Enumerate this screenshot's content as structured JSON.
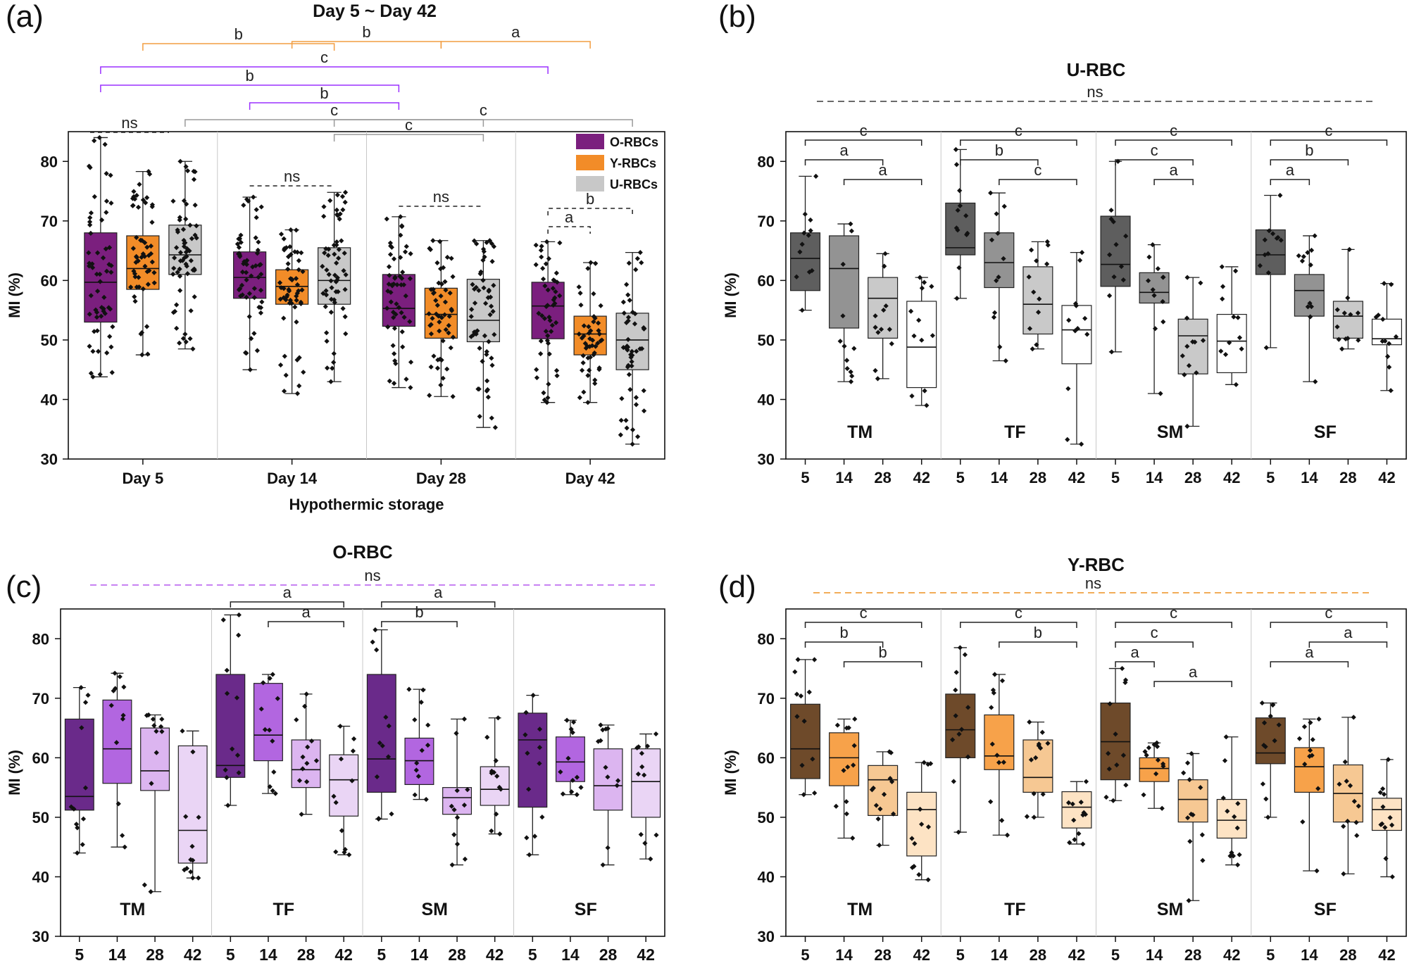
{
  "figure": {
    "colors": {
      "O": "#7b1f7e",
      "Y": "#f28c28",
      "U": "#c8c8c8",
      "o_bracket": "#9b30ff",
      "y_bracket": "#f29d40",
      "grid": "#c8c8c8"
    }
  },
  "chart_data": [
    {
      "id": "a",
      "panel_label": "(a)",
      "type": "box",
      "title": "Day 5 ~ Day 42",
      "xlabel": "Hypothermic storage",
      "ylabel": "MI (%)",
      "ylim": [
        30,
        85
      ],
      "yticks": [
        30,
        40,
        50,
        60,
        70,
        80
      ],
      "categories": [
        "Day 5",
        "Day 14",
        "Day 28",
        "Day 42"
      ],
      "legend": [
        {
          "label": "O-RBCs",
          "color": "#7b1f7e"
        },
        {
          "label": "Y-RBCs",
          "color": "#f28c28"
        },
        {
          "label": "U-RBCs",
          "color": "#c8c8c8"
        }
      ],
      "series": [
        {
          "name": "O-RBCs",
          "boxes": [
            {
              "whislo": 43.8,
              "q1": 53.0,
              "med": 59.7,
              "q3": 68.0,
              "whishi": 84.0
            },
            {
              "whislo": 45.0,
              "q1": 57.0,
              "med": 60.5,
              "q3": 64.8,
              "whishi": 74.0
            },
            {
              "whislo": 42.0,
              "q1": 52.3,
              "med": 55.3,
              "q3": 61.0,
              "whishi": 70.7
            },
            {
              "whislo": 39.5,
              "q1": 50.2,
              "med": 55.7,
              "q3": 59.7,
              "whishi": 66.5
            }
          ]
        },
        {
          "name": "Y-RBCs",
          "boxes": [
            {
              "whislo": 47.5,
              "q1": 58.5,
              "med": 62.0,
              "q3": 67.5,
              "whishi": 78.3
            },
            {
              "whislo": 41.0,
              "q1": 56.0,
              "med": 59.0,
              "q3": 61.8,
              "whishi": 68.5
            },
            {
              "whislo": 40.5,
              "q1": 50.3,
              "med": 54.3,
              "q3": 58.7,
              "whishi": 66.7
            },
            {
              "whislo": 39.5,
              "q1": 47.5,
              "med": 51.0,
              "q3": 54.0,
              "whishi": 63.0
            }
          ]
        },
        {
          "name": "U-RBCs",
          "boxes": [
            {
              "whislo": 48.5,
              "q1": 61.0,
              "med": 64.3,
              "q3": 69.3,
              "whishi": 80.0
            },
            {
              "whislo": 43.0,
              "q1": 56.0,
              "med": 60.0,
              "q3": 65.5,
              "whishi": 74.8
            },
            {
              "whislo": 35.3,
              "q1": 49.7,
              "med": 53.3,
              "q3": 60.2,
              "whishi": 66.7
            },
            {
              "whislo": 32.5,
              "q1": 45.0,
              "med": 50.0,
              "q3": 54.5,
              "whishi": 64.7
            }
          ]
        }
      ],
      "annotations": [
        {
          "label": "b",
          "color": "orange",
          "from": [
            "Day 5",
            "Y-RBCs"
          ],
          "to": [
            "Day 14",
            "U-RBCs"
          ]
        },
        {
          "label": "b",
          "color": "orange",
          "from": [
            "Day 14",
            "Y-RBCs"
          ],
          "to": [
            "Day 28",
            "Y-RBCs"
          ]
        },
        {
          "label": "a",
          "color": "orange",
          "from": [
            "Day 28",
            "Y-RBCs"
          ],
          "to": [
            "Day 42",
            "Y-RBCs"
          ]
        },
        {
          "label": "c",
          "color": "purple",
          "from": [
            "Day 5",
            "O-RBCs"
          ],
          "to": [
            "Day 42",
            "O-RBCs"
          ]
        },
        {
          "label": "b",
          "color": "purple",
          "from": [
            "Day 5",
            "O-RBCs"
          ],
          "to": [
            "Day 28",
            "O-RBCs"
          ]
        },
        {
          "label": "b",
          "color": "purple",
          "from": [
            "Day 14",
            "O-RBCs"
          ],
          "to": [
            "Day 28",
            "O-RBCs"
          ]
        },
        {
          "label": "c",
          "color": "gray",
          "from": [
            "Day 5",
            "U-RBCs"
          ],
          "to": [
            "Day 28",
            "U-RBCs"
          ]
        },
        {
          "label": "c",
          "color": "gray",
          "from": [
            "Day 14",
            "U-RBCs"
          ],
          "to": [
            "Day 42",
            "U-RBCs"
          ]
        },
        {
          "label": "c",
          "color": "gray",
          "from": [
            "Day 14",
            "U-RBCs"
          ],
          "to": [
            "Day 28",
            "U-RBCs"
          ]
        },
        {
          "label": "ns",
          "color": "black-dashed",
          "group": "Day 5"
        },
        {
          "label": "ns",
          "color": "black-dashed",
          "group": "Day 14"
        },
        {
          "label": "ns",
          "color": "black-dashed",
          "group": "Day 28"
        },
        {
          "label": "a",
          "color": "black-dashed",
          "from": [
            "Day 42",
            "O-RBCs"
          ],
          "to": [
            "Day 42",
            "Y-RBCs"
          ]
        },
        {
          "label": "b",
          "color": "black-dashed",
          "from": [
            "Day 42",
            "O-RBCs"
          ],
          "to": [
            "Day 42",
            "U-RBCs"
          ]
        }
      ]
    },
    {
      "id": "b",
      "panel_label": "(b)",
      "type": "box",
      "title": "U-RBC",
      "overall_label": "ns",
      "ylabel": "MI (%)",
      "ylim": [
        30,
        85
      ],
      "yticks": [
        30,
        40,
        50,
        60,
        70,
        80
      ],
      "groups": [
        "TM",
        "TF",
        "SM",
        "SF"
      ],
      "days": [
        "5",
        "14",
        "28",
        "42"
      ],
      "series_colors": [
        "#5e5e5e",
        "#939393",
        "#c9c9c9",
        "#ffffff"
      ],
      "boxes": [
        [
          {
            "whislo": 55.0,
            "q1": 58.3,
            "med": 63.7,
            "q3": 68.0,
            "whishi": 77.5
          },
          {
            "whislo": 43.0,
            "q1": 52.0,
            "med": 62.0,
            "q3": 67.5,
            "whishi": 69.5
          },
          {
            "whislo": 43.5,
            "q1": 50.3,
            "med": 57.0,
            "q3": 60.5,
            "whishi": 64.5
          },
          {
            "whislo": 39.0,
            "q1": 42.0,
            "med": 48.8,
            "q3": 56.5,
            "whishi": 60.5
          }
        ],
        [
          {
            "whislo": 57.0,
            "q1": 64.3,
            "med": 65.5,
            "q3": 73.0,
            "whishi": 82.0
          },
          {
            "whislo": 46.5,
            "q1": 58.8,
            "med": 63.0,
            "q3": 68.0,
            "whishi": 74.7
          },
          {
            "whislo": 48.5,
            "q1": 51.0,
            "med": 56.0,
            "q3": 62.3,
            "whishi": 66.5
          },
          {
            "whislo": 32.5,
            "q1": 46.0,
            "med": 51.7,
            "q3": 55.8,
            "whishi": 64.7
          }
        ],
        [
          {
            "whislo": 48.0,
            "q1": 59.0,
            "med": 62.7,
            "q3": 70.8,
            "whishi": 80.0
          },
          {
            "whislo": 41.0,
            "q1": 56.2,
            "med": 58.0,
            "q3": 61.3,
            "whishi": 66.0
          },
          {
            "whislo": 35.5,
            "q1": 44.3,
            "med": 50.7,
            "q3": 53.5,
            "whishi": 60.5
          },
          {
            "whislo": 42.5,
            "q1": 44.5,
            "med": 49.8,
            "q3": 54.3,
            "whishi": 62.3
          }
        ],
        [
          {
            "whislo": 48.7,
            "q1": 61.0,
            "med": 64.3,
            "q3": 68.5,
            "whishi": 74.3
          },
          {
            "whislo": 43.0,
            "q1": 54.0,
            "med": 58.3,
            "q3": 61.0,
            "whishi": 67.5
          },
          {
            "whislo": 48.5,
            "q1": 50.3,
            "med": 54.0,
            "q3": 56.5,
            "whishi": 65.2
          },
          {
            "whislo": 41.5,
            "q1": 49.2,
            "med": 50.2,
            "q3": 53.5,
            "whishi": 59.5
          }
        ]
      ],
      "annotations": [
        {
          "group": "TM",
          "from": "5",
          "to": "42",
          "label": "c"
        },
        {
          "group": "TM",
          "from": "5",
          "to": "28",
          "label": "a"
        },
        {
          "group": "TM",
          "from": "14",
          "to": "42",
          "label": "a"
        },
        {
          "group": "TF",
          "from": "5",
          "to": "42",
          "label": "c"
        },
        {
          "group": "TF",
          "from": "5",
          "to": "28",
          "label": "b"
        },
        {
          "group": "TF",
          "from": "14",
          "to": "42",
          "label": "c"
        },
        {
          "group": "SM",
          "from": "5",
          "to": "42",
          "label": "c"
        },
        {
          "group": "SM",
          "from": "5",
          "to": "28",
          "label": "c"
        },
        {
          "group": "SM",
          "from": "14",
          "to": "28",
          "label": "a"
        },
        {
          "group": "SF",
          "from": "5",
          "to": "42",
          "label": "c"
        },
        {
          "group": "SF",
          "from": "5",
          "to": "28",
          "label": "b"
        },
        {
          "group": "SF",
          "from": "5",
          "to": "14",
          "label": "a"
        }
      ]
    },
    {
      "id": "c",
      "panel_label": "(c)",
      "type": "box",
      "title": "O-RBC",
      "overall_label": "ns",
      "ylabel": "MI (%)",
      "ylim": [
        30,
        85
      ],
      "yticks": [
        30,
        40,
        50,
        60,
        70,
        80
      ],
      "groups": [
        "TM",
        "TF",
        "SM",
        "SF"
      ],
      "days": [
        "5",
        "14",
        "28",
        "42"
      ],
      "series_colors": [
        "#6a2a8a",
        "#b266e0",
        "#dcb5f0",
        "#ead5f5"
      ],
      "boxes": [
        [
          {
            "whislo": 44.0,
            "q1": 51.2,
            "med": 53.5,
            "q3": 66.5,
            "whishi": 71.8
          },
          {
            "whislo": 45.0,
            "q1": 55.7,
            "med": 61.5,
            "q3": 69.7,
            "whishi": 74.2
          },
          {
            "whislo": 37.5,
            "q1": 54.5,
            "med": 57.8,
            "q3": 65.0,
            "whishi": 67.2
          },
          {
            "whislo": 39.8,
            "q1": 42.3,
            "med": 47.8,
            "q3": 62.0,
            "whishi": 64.5
          }
        ],
        [
          {
            "whislo": 52.0,
            "q1": 56.7,
            "med": 58.7,
            "q3": 74.0,
            "whishi": 84.0
          },
          {
            "whislo": 54.0,
            "q1": 59.5,
            "med": 63.8,
            "q3": 72.5,
            "whishi": 74.0
          },
          {
            "whislo": 50.5,
            "q1": 55.0,
            "med": 58.0,
            "q3": 63.0,
            "whishi": 70.7
          },
          {
            "whislo": 43.7,
            "q1": 50.2,
            "med": 56.3,
            "q3": 60.5,
            "whishi": 65.3
          }
        ],
        [
          {
            "whislo": 49.7,
            "q1": 54.2,
            "med": 59.8,
            "q3": 74.0,
            "whishi": 81.5
          },
          {
            "whislo": 53.0,
            "q1": 55.5,
            "med": 59.5,
            "q3": 63.3,
            "whishi": 71.5
          },
          {
            "whislo": 42.0,
            "q1": 50.5,
            "med": 53.3,
            "q3": 55.0,
            "whishi": 66.5
          },
          {
            "whislo": 47.2,
            "q1": 52.0,
            "med": 54.7,
            "q3": 58.5,
            "whishi": 66.7
          }
        ],
        [
          {
            "whislo": 43.7,
            "q1": 51.7,
            "med": 63.0,
            "q3": 67.5,
            "whishi": 70.5
          },
          {
            "whislo": 53.8,
            "q1": 56.0,
            "med": 59.3,
            "q3": 63.5,
            "whishi": 66.3
          },
          {
            "whislo": 42.0,
            "q1": 51.2,
            "med": 55.3,
            "q3": 61.5,
            "whishi": 65.5
          },
          {
            "whislo": 43.0,
            "q1": 50.0,
            "med": 56.0,
            "q3": 61.5,
            "whishi": 64.0
          }
        ]
      ],
      "annotations": [
        {
          "group": "TF",
          "from": "5",
          "to": "42",
          "label": "a"
        },
        {
          "group": "TF",
          "from": "14",
          "to": "42",
          "label": "a"
        },
        {
          "group": "SM",
          "from": "5",
          "to": "42",
          "label": "a"
        },
        {
          "group": "SM",
          "from": "5",
          "to": "28",
          "label": "b"
        }
      ]
    },
    {
      "id": "d",
      "panel_label": "(d)",
      "type": "box",
      "title": "Y-RBC",
      "overall_label": "ns",
      "ylabel": "MI (%)",
      "ylim": [
        30,
        85
      ],
      "yticks": [
        30,
        40,
        50,
        60,
        70,
        80
      ],
      "groups": [
        "TM",
        "TF",
        "SM",
        "SF"
      ],
      "days": [
        "5",
        "14",
        "28",
        "42"
      ],
      "series_colors": [
        "#6e4a2a",
        "#f7a24a",
        "#f6c893",
        "#fde3c4"
      ],
      "boxes": [
        [
          {
            "whislo": 53.8,
            "q1": 56.5,
            "med": 61.5,
            "q3": 69.0,
            "whishi": 76.5
          },
          {
            "whislo": 46.5,
            "q1": 55.3,
            "med": 60.0,
            "q3": 64.2,
            "whishi": 66.5
          },
          {
            "whislo": 45.3,
            "q1": 50.3,
            "med": 56.3,
            "q3": 58.7,
            "whishi": 61.0
          },
          {
            "whislo": 39.5,
            "q1": 43.5,
            "med": 51.3,
            "q3": 54.2,
            "whishi": 59.2
          }
        ],
        [
          {
            "whislo": 47.5,
            "q1": 60.0,
            "med": 64.7,
            "q3": 70.7,
            "whishi": 78.5
          },
          {
            "whislo": 47.0,
            "q1": 58.0,
            "med": 60.3,
            "q3": 67.2,
            "whishi": 74.0
          },
          {
            "whislo": 50.0,
            "q1": 54.2,
            "med": 56.7,
            "q3": 63.0,
            "whishi": 66.0
          },
          {
            "whislo": 45.5,
            "q1": 48.2,
            "med": 51.7,
            "q3": 54.3,
            "whishi": 56.0
          }
        ],
        [
          {
            "whislo": 52.8,
            "q1": 56.3,
            "med": 62.7,
            "q3": 69.2,
            "whishi": 75.0
          },
          {
            "whislo": 51.5,
            "q1": 56.0,
            "med": 58.2,
            "q3": 60.0,
            "whishi": 62.5
          },
          {
            "whislo": 36.0,
            "q1": 49.2,
            "med": 53.0,
            "q3": 56.3,
            "whishi": 60.7
          },
          {
            "whislo": 42.0,
            "q1": 46.5,
            "med": 49.5,
            "q3": 53.0,
            "whishi": 63.5
          }
        ],
        [
          {
            "whislo": 50.0,
            "q1": 59.0,
            "med": 60.8,
            "q3": 66.7,
            "whishi": 69.2
          },
          {
            "whislo": 41.0,
            "q1": 54.2,
            "med": 58.5,
            "q3": 61.7,
            "whishi": 66.5
          },
          {
            "whislo": 40.5,
            "q1": 49.2,
            "med": 54.0,
            "q3": 58.8,
            "whishi": 66.8
          },
          {
            "whislo": 40.0,
            "q1": 47.8,
            "med": 51.3,
            "q3": 53.2,
            "whishi": 59.7
          }
        ]
      ],
      "annotations": [
        {
          "group": "TM",
          "from": "5",
          "to": "42",
          "label": "c"
        },
        {
          "group": "TM",
          "from": "5",
          "to": "28",
          "label": "b"
        },
        {
          "group": "TM",
          "from": "14",
          "to": "42",
          "label": "b"
        },
        {
          "group": "TF",
          "from": "5",
          "to": "42",
          "label": "c"
        },
        {
          "group": "TF",
          "from": "14",
          "to": "42",
          "label": "b"
        },
        {
          "group": "SM",
          "from": "5",
          "to": "42",
          "label": "c"
        },
        {
          "group": "SM",
          "from": "5",
          "to": "28",
          "label": "c"
        },
        {
          "group": "SM",
          "from": "5",
          "to": "14",
          "label": "a"
        },
        {
          "group": "SM",
          "from": "14",
          "to": "42",
          "label": "a"
        },
        {
          "group": "SF",
          "from": "5",
          "to": "42",
          "label": "c"
        },
        {
          "group": "SF",
          "from": "14",
          "to": "42",
          "label": "a"
        },
        {
          "group": "SF",
          "from": "5",
          "to": "28",
          "label": "a"
        }
      ]
    }
  ]
}
